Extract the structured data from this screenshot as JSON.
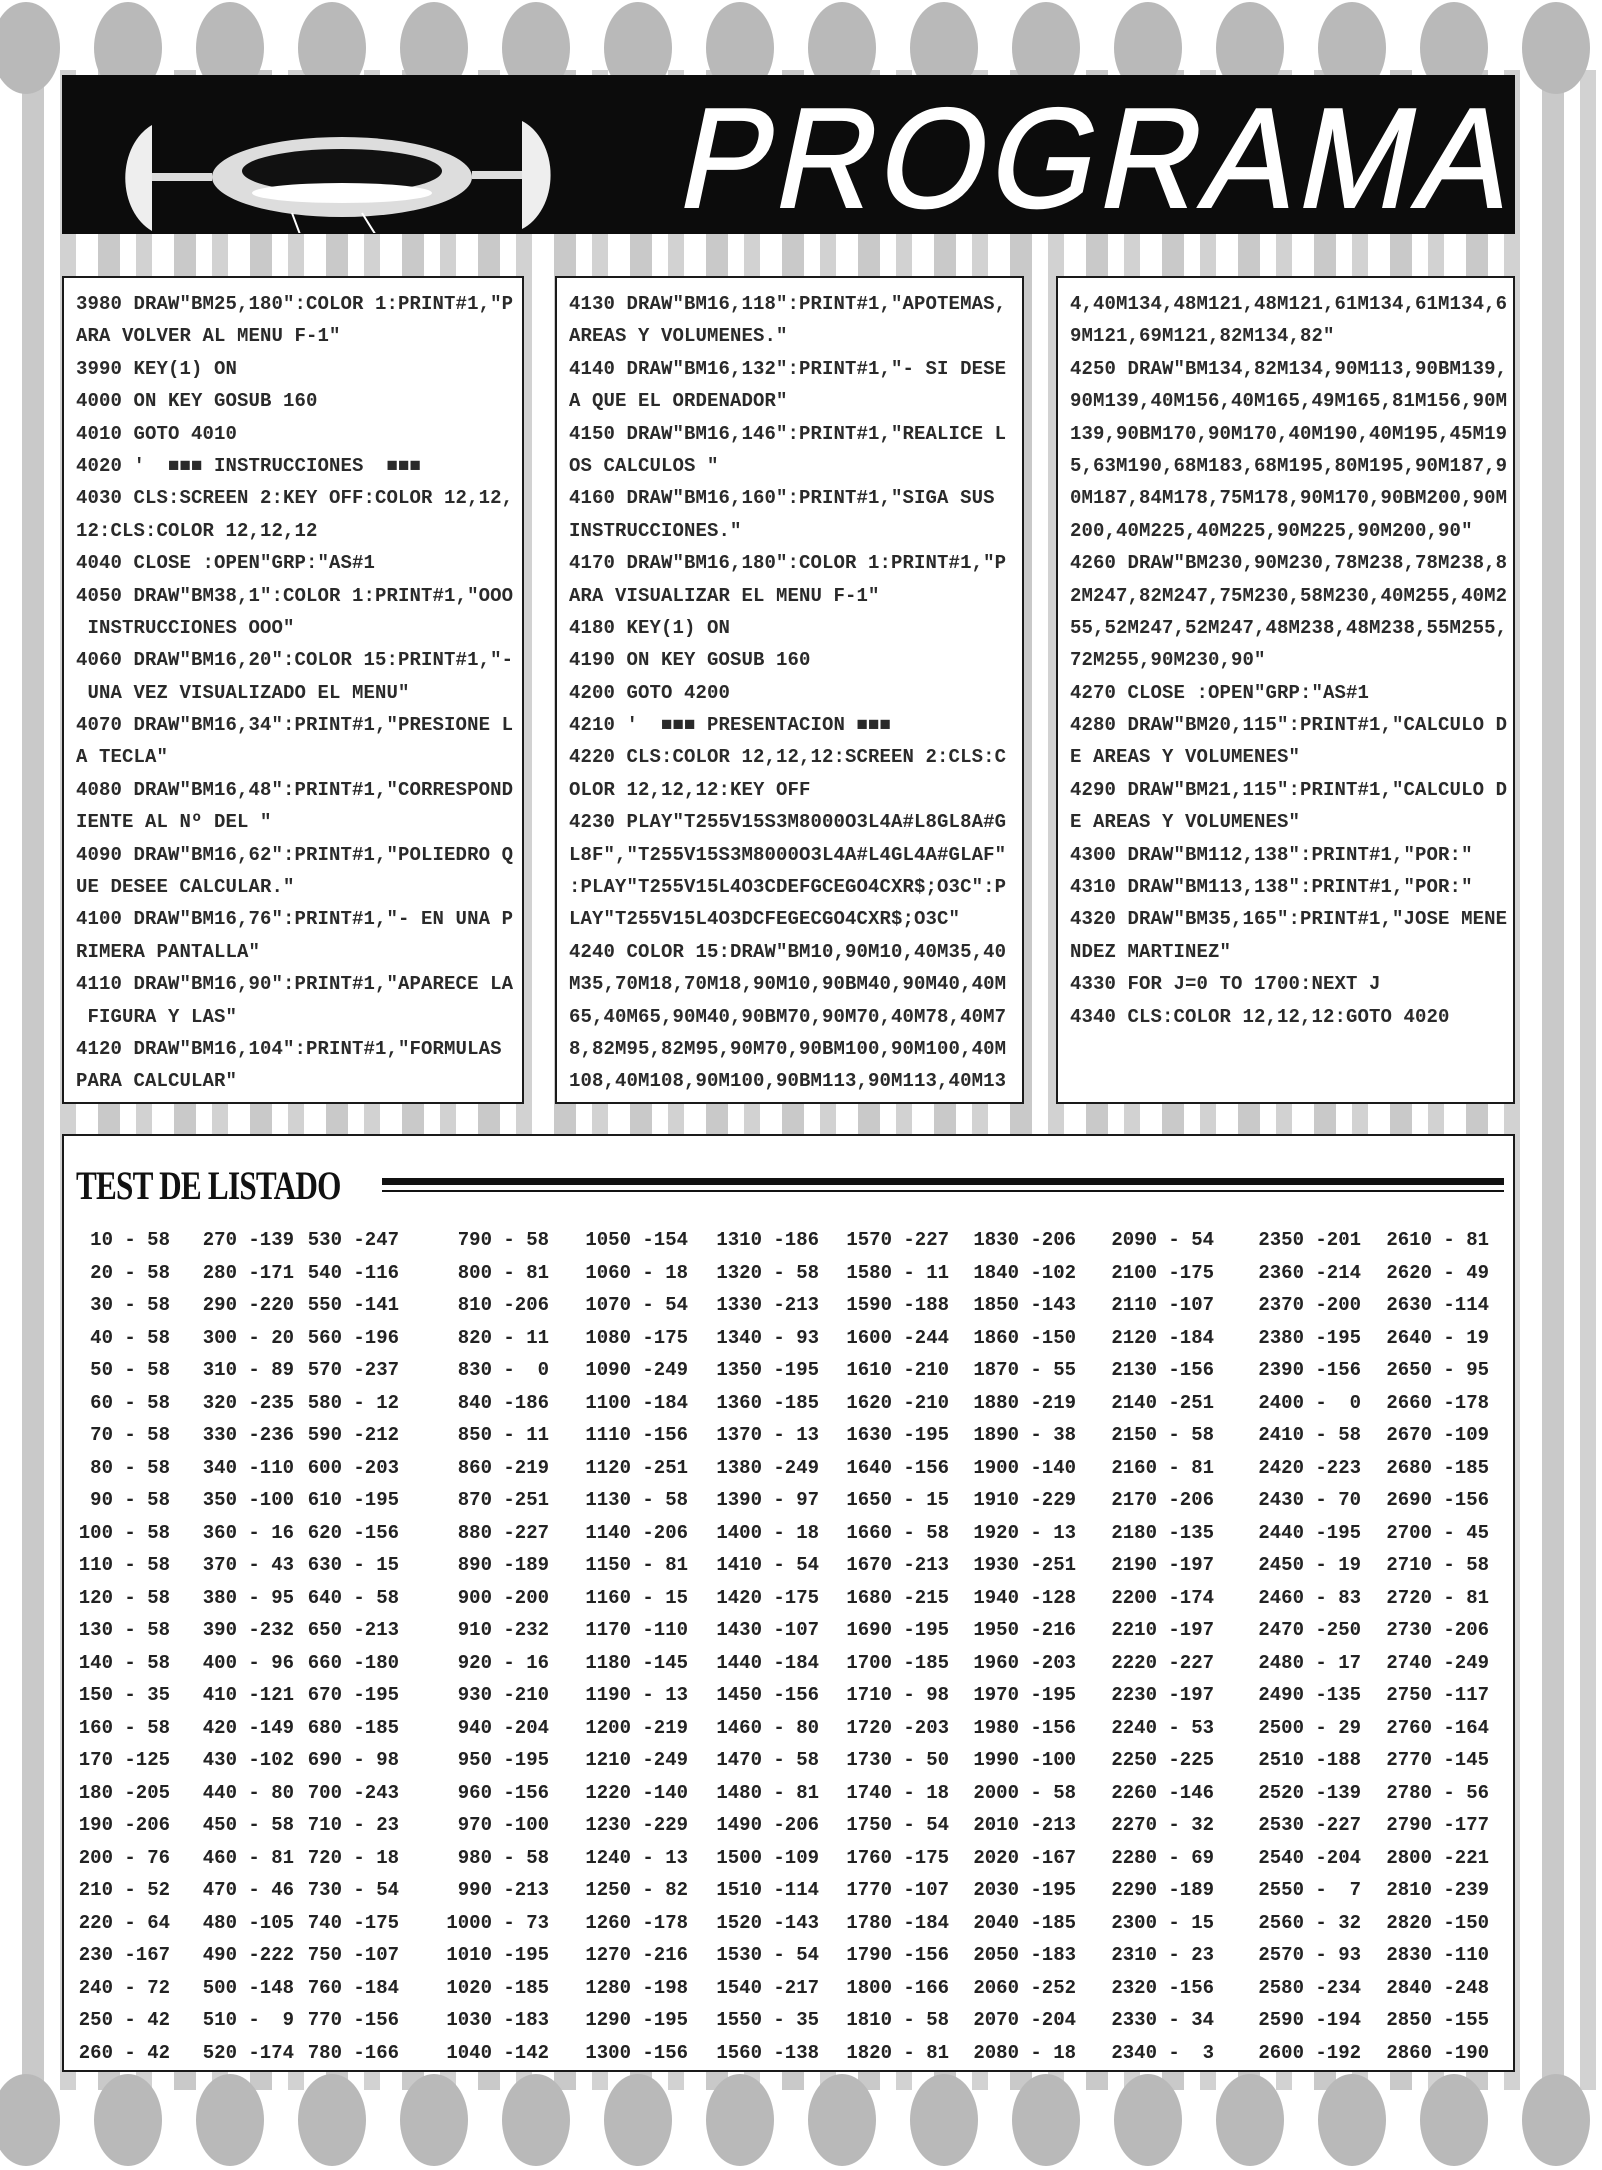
{
  "header": {
    "title": "PROGRAMAS",
    "logo_icon": "spaceship-illustration"
  },
  "colors": {
    "header_bg": "#0c0c0c",
    "stripe": "#c9c9c9",
    "dot": "#b9b9b9"
  },
  "listing": {
    "columns": [
      [
        "3980 DRAW\"BM25,180\":COLOR 1:PRINT#1,\"P",
        "ARA VOLVER AL MENU F-1\"",
        "3990 KEY(1) ON",
        "4000 ON KEY GOSUB 160",
        "4010 GOTO 4010",
        "4020 '  ■■■ INSTRUCCIONES  ■■■",
        "4030 CLS:SCREEN 2:KEY OFF:COLOR 12,12,",
        "12:CLS:COLOR 12,12,12",
        "4040 CLOSE :OPEN\"GRP:\"AS#1",
        "4050 DRAW\"BM38,1\":COLOR 1:PRINT#1,\"OOO",
        " INSTRUCCIONES OOO\"",
        "4060 DRAW\"BM16,20\":COLOR 15:PRINT#1,\"-",
        " UNA VEZ VISUALIZADO EL MENU\"",
        "4070 DRAW\"BM16,34\":PRINT#1,\"PRESIONE L",
        "A TECLA\"",
        "4080 DRAW\"BM16,48\":PRINT#1,\"CORRESPOND",
        "IENTE AL Nº DEL \"",
        "4090 DRAW\"BM16,62\":PRINT#1,\"POLIEDRO Q",
        "UE DESEE CALCULAR.\"",
        "4100 DRAW\"BM16,76\":PRINT#1,\"- EN UNA P",
        "RIMERA PANTALLA\"",
        "4110 DRAW\"BM16,90\":PRINT#1,\"APARECE LA",
        " FIGURA Y LAS\"",
        "4120 DRAW\"BM16,104\":PRINT#1,\"FORMULAS",
        "PARA CALCULAR\""
      ],
      [
        "4130 DRAW\"BM16,118\":PRINT#1,\"APOTEMAS,",
        "AREAS Y VOLUMENES.\"",
        "4140 DRAW\"BM16,132\":PRINT#1,\"- SI DESE",
        "A QUE EL ORDENADOR\"",
        "4150 DRAW\"BM16,146\":PRINT#1,\"REALICE L",
        "OS CALCULOS \"",
        "4160 DRAW\"BM16,160\":PRINT#1,\"SIGA SUS",
        "INSTRUCCIONES.\"",
        "4170 DRAW\"BM16,180\":COLOR 1:PRINT#1,\"P",
        "ARA VISUALIZAR EL MENU F-1\"",
        "4180 KEY(1) ON",
        "4190 ON KEY GOSUB 160",
        "4200 GOTO 4200",
        "4210 '  ■■■ PRESENTACION ■■■",
        "4220 CLS:COLOR 12,12,12:SCREEN 2:CLS:C",
        "OLOR 12,12,12:KEY OFF",
        "4230 PLAY\"T255V15S3M8000O3L4A#L8GL8A#G",
        "L8F\",\"T255V15S3M8000O3L4A#L4GL4A#GLAF\"",
        ":PLAY\"T255V15L4O3CDEFGCEGO4CXR$;O3C\":P",
        "LAY\"T255V15L4O3DCFEGECGO4CXR$;O3C\"",
        "4240 COLOR 15:DRAW\"BM10,90M10,40M35,40",
        "M35,70M18,70M18,90M10,90BM40,90M40,40M",
        "65,40M65,90M40,90BM70,90M70,40M78,40M7",
        "8,82M95,82M95,90M70,90BM100,90M100,40M",
        "108,40M108,90M100,90BM113,90M113,40M13"
      ],
      [
        "4,40M134,48M121,48M121,61M134,61M134,6",
        "9M121,69M121,82M134,82\"",
        "4250 DRAW\"BM134,82M134,90M113,90BM139,",
        "90M139,40M156,40M165,49M165,81M156,90M",
        "139,90BM170,90M170,40M190,40M195,45M19",
        "5,63M190,68M183,68M195,80M195,90M187,9",
        "0M187,84M178,75M178,90M170,90BM200,90M",
        "200,40M225,40M225,90M225,90M200,90\"",
        "4260 DRAW\"BM230,90M230,78M238,78M238,8",
        "2M247,82M247,75M230,58M230,40M255,40M2",
        "55,52M247,52M247,48M238,48M238,55M255,",
        "72M255,90M230,90\"",
        "4270 CLOSE :OPEN\"GRP:\"AS#1",
        "4280 DRAW\"BM20,115\":PRINT#1,\"CALCULO D",
        "E AREAS Y VOLUMENES\"",
        "4290 DRAW\"BM21,115\":PRINT#1,\"CALCULO D",
        "E AREAS Y VOLUMENES\"",
        "4300 DRAW\"BM112,138\":PRINT#1,\"POR:\"",
        "4310 DRAW\"BM113,138\":PRINT#1,\"POR:\"",
        "4320 DRAW\"BM35,165\":PRINT#1,\"JOSE MENE",
        "NDEZ MARTINEZ\"",
        "4330 FOR J=0 TO 1700:NEXT J",
        "4340 CLS:COLOR 12,12,12:GOTO 4020"
      ]
    ]
  },
  "test": {
    "title": "TEST DE LISTADO",
    "columns": [
      [
        "10 - 58",
        "20 - 58",
        "30 - 58",
        "40 - 58",
        "50 - 58",
        "60 - 58",
        "70 - 58",
        "80 - 58",
        "90 - 58",
        "100 - 58",
        "110 - 58",
        "120 - 58",
        "130 - 58",
        "140 - 58",
        "150 - 35",
        "160 - 58",
        "170 -125",
        "180 -205",
        "190 -206",
        "200 - 76",
        "210 - 52",
        "220 - 64",
        "230 -167",
        "240 - 72",
        "250 - 42",
        "260 - 42"
      ],
      [
        "270 -139",
        "280 -171",
        "290 -220",
        "300 - 20",
        "310 - 89",
        "320 -235",
        "330 -236",
        "340 -110",
        "350 -100",
        "360 - 16",
        "370 - 43",
        "380 - 95",
        "390 -232",
        "400 - 96",
        "410 -121",
        "420 -149",
        "430 -102",
        "440 - 80",
        "450 - 58",
        "460 - 81",
        "470 - 46",
        "480 -105",
        "490 -222",
        "500 -148",
        "510 -  9",
        "520 -174"
      ],
      [
        "530 -247",
        "540 -116",
        "550 -141",
        "560 -196",
        "570 -237",
        "580 - 12",
        "590 -212",
        "600 -203",
        "610 -195",
        "620 -156",
        "630 - 15",
        "640 - 58",
        "650 -213",
        "660 -180",
        "670 -195",
        "680 -185",
        "690 - 98",
        "700 -243",
        "710 - 23",
        "720 - 18",
        "730 - 54",
        "740 -175",
        "750 -107",
        "760 -184",
        "770 -156",
        "780 -166"
      ],
      [
        "790 - 58",
        "800 - 81",
        "810 -206",
        "820 - 11",
        "830 -  0",
        "840 -186",
        "850 - 11",
        "860 -219",
        "870 -251",
        "880 -227",
        "890 -189",
        "900 -200",
        "910 -232",
        "920 - 16",
        "930 -210",
        "940 -204",
        "950 -195",
        "960 -156",
        "970 -100",
        "980 - 58",
        "990 -213",
        "1000 - 73",
        "1010 -195",
        "1020 -185",
        "1030 -183",
        "1040 -142"
      ],
      [
        "1050 -154",
        "1060 - 18",
        "1070 - 54",
        "1080 -175",
        "1090 -249",
        "1100 -184",
        "1110 -156",
        "1120 -251",
        "1130 - 58",
        "1140 -206",
        "1150 - 81",
        "1160 - 15",
        "1170 -110",
        "1180 -145",
        "1190 - 13",
        "1200 -219",
        "1210 -249",
        "1220 -140",
        "1230 -229",
        "1240 - 13",
        "1250 - 82",
        "1260 -178",
        "1270 -216",
        "1280 -198",
        "1290 -195",
        "1300 -156"
      ],
      [
        "1310 -186",
        "1320 - 58",
        "1330 -213",
        "1340 - 93",
        "1350 -195",
        "1360 -185",
        "1370 - 13",
        "1380 -249",
        "1390 - 97",
        "1400 - 18",
        "1410 - 54",
        "1420 -175",
        "1430 -107",
        "1440 -184",
        "1450 -156",
        "1460 - 80",
        "1470 - 58",
        "1480 - 81",
        "1490 -206",
        "1500 -109",
        "1510 -114",
        "1520 -143",
        "1530 - 54",
        "1540 -217",
        "1550 - 35",
        "1560 -138"
      ],
      [
        "1570 -227",
        "1580 - 11",
        "1590 -188",
        "1600 -244",
        "1610 -210",
        "1620 -210",
        "1630 -195",
        "1640 -156",
        "1650 - 15",
        "1660 - 58",
        "1670 -213",
        "1680 -215",
        "1690 -195",
        "1700 -185",
        "1710 - 98",
        "1720 -203",
        "1730 - 50",
        "1740 - 18",
        "1750 - 54",
        "1760 -175",
        "1770 -107",
        "1780 -184",
        "1790 -156",
        "1800 -166",
        "1810 - 58",
        "1820 - 81"
      ],
      [
        "1830 -206",
        "1840 -102",
        "1850 -143",
        "1860 -150",
        "1870 - 55",
        "1880 -219",
        "1890 - 38",
        "1900 -140",
        "1910 -229",
        "1920 - 13",
        "1930 -251",
        "1940 -128",
        "1950 -216",
        "1960 -203",
        "1970 -195",
        "1980 -156",
        "1990 -100",
        "2000 - 58",
        "2010 -213",
        "2020 -167",
        "2030 -195",
        "2040 -185",
        "2050 -183",
        "2060 -252",
        "2070 -204",
        "2080 - 18"
      ],
      [
        "2090 - 54",
        "2100 -175",
        "2110 -107",
        "2120 -184",
        "2130 -156",
        "2140 -251",
        "2150 - 58",
        "2160 - 81",
        "2170 -206",
        "2180 -135",
        "2190 -197",
        "2200 -174",
        "2210 -197",
        "2220 -227",
        "2230 -197",
        "2240 - 53",
        "2250 -225",
        "2260 -146",
        "2270 - 32",
        "2280 - 69",
        "2290 -189",
        "2300 - 15",
        "2310 - 23",
        "2320 -156",
        "2330 - 34",
        "2340 -  3"
      ],
      [
        "2350 -201",
        "2360 -214",
        "2370 -200",
        "2380 -195",
        "2390 -156",
        "2400 -  0",
        "2410 - 58",
        "2420 -223",
        "2430 - 70",
        "2440 -195",
        "2450 - 19",
        "2460 - 83",
        "2470 -250",
        "2480 - 17",
        "2490 -135",
        "2500 - 29",
        "2510 -188",
        "2520 -139",
        "2530 -227",
        "2540 -204",
        "2550 -  7",
        "2560 - 32",
        "2570 - 93",
        "2580 -234",
        "2590 -194",
        "2600 -192"
      ],
      [
        "2610 - 81",
        "2620 - 49",
        "2630 -114",
        "2640 - 19",
        "2650 - 95",
        "2660 -178",
        "2670 -109",
        "2680 -185",
        "2690 -156",
        "2700 - 45",
        "2710 - 58",
        "2720 - 81",
        "2730 -206",
        "2740 -249",
        "2750 -117",
        "2760 -164",
        "2770 -145",
        "2780 - 56",
        "2790 -177",
        "2800 -221",
        "2810 -239",
        "2820 -150",
        "2830 -110",
        "2840 -248",
        "2850 -155",
        "2860 -190"
      ]
    ]
  }
}
